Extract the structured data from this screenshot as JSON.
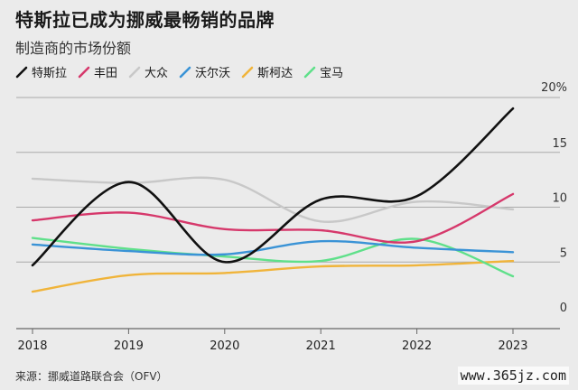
{
  "chart_data": {
    "type": "line",
    "title": "特斯拉已成为挪威最畅销的品牌",
    "subtitle": "制造商的市场份额",
    "x": [
      2018,
      2019,
      2020,
      2021,
      2022,
      2023
    ],
    "x_ticks": [
      "2018",
      "2019",
      "2020",
      "2021",
      "2022",
      "2023"
    ],
    "y_ticks": [
      "0",
      "5",
      "10",
      "15",
      "20%"
    ],
    "ylim": [
      0,
      20
    ],
    "grid": true,
    "legend_position": "top-left",
    "series": [
      {
        "name": "特斯拉",
        "color": "#111111",
        "values": [
          4.7,
          12.3,
          5.0,
          10.7,
          11.0,
          19.0
        ]
      },
      {
        "name": "丰田",
        "color": "#d6386b",
        "values": [
          8.8,
          9.5,
          8.0,
          7.9,
          6.9,
          11.2
        ]
      },
      {
        "name": "大众",
        "color": "#c8c8c8",
        "values": [
          12.6,
          12.2,
          12.5,
          8.7,
          10.5,
          9.8
        ]
      },
      {
        "name": "沃尔沃",
        "color": "#3a93d6",
        "values": [
          6.6,
          6.0,
          5.7,
          6.9,
          6.3,
          5.9
        ]
      },
      {
        "name": "斯柯达",
        "color": "#f0b43a",
        "values": [
          2.3,
          3.8,
          4.0,
          4.6,
          4.7,
          5.1
        ]
      },
      {
        "name": "宝马",
        "color": "#5fe08a",
        "values": [
          7.2,
          6.2,
          5.5,
          5.1,
          7.1,
          3.7
        ]
      }
    ],
    "source": "来源：挪威道路联合会（OFV）"
  },
  "watermark": "www.365jz.com"
}
